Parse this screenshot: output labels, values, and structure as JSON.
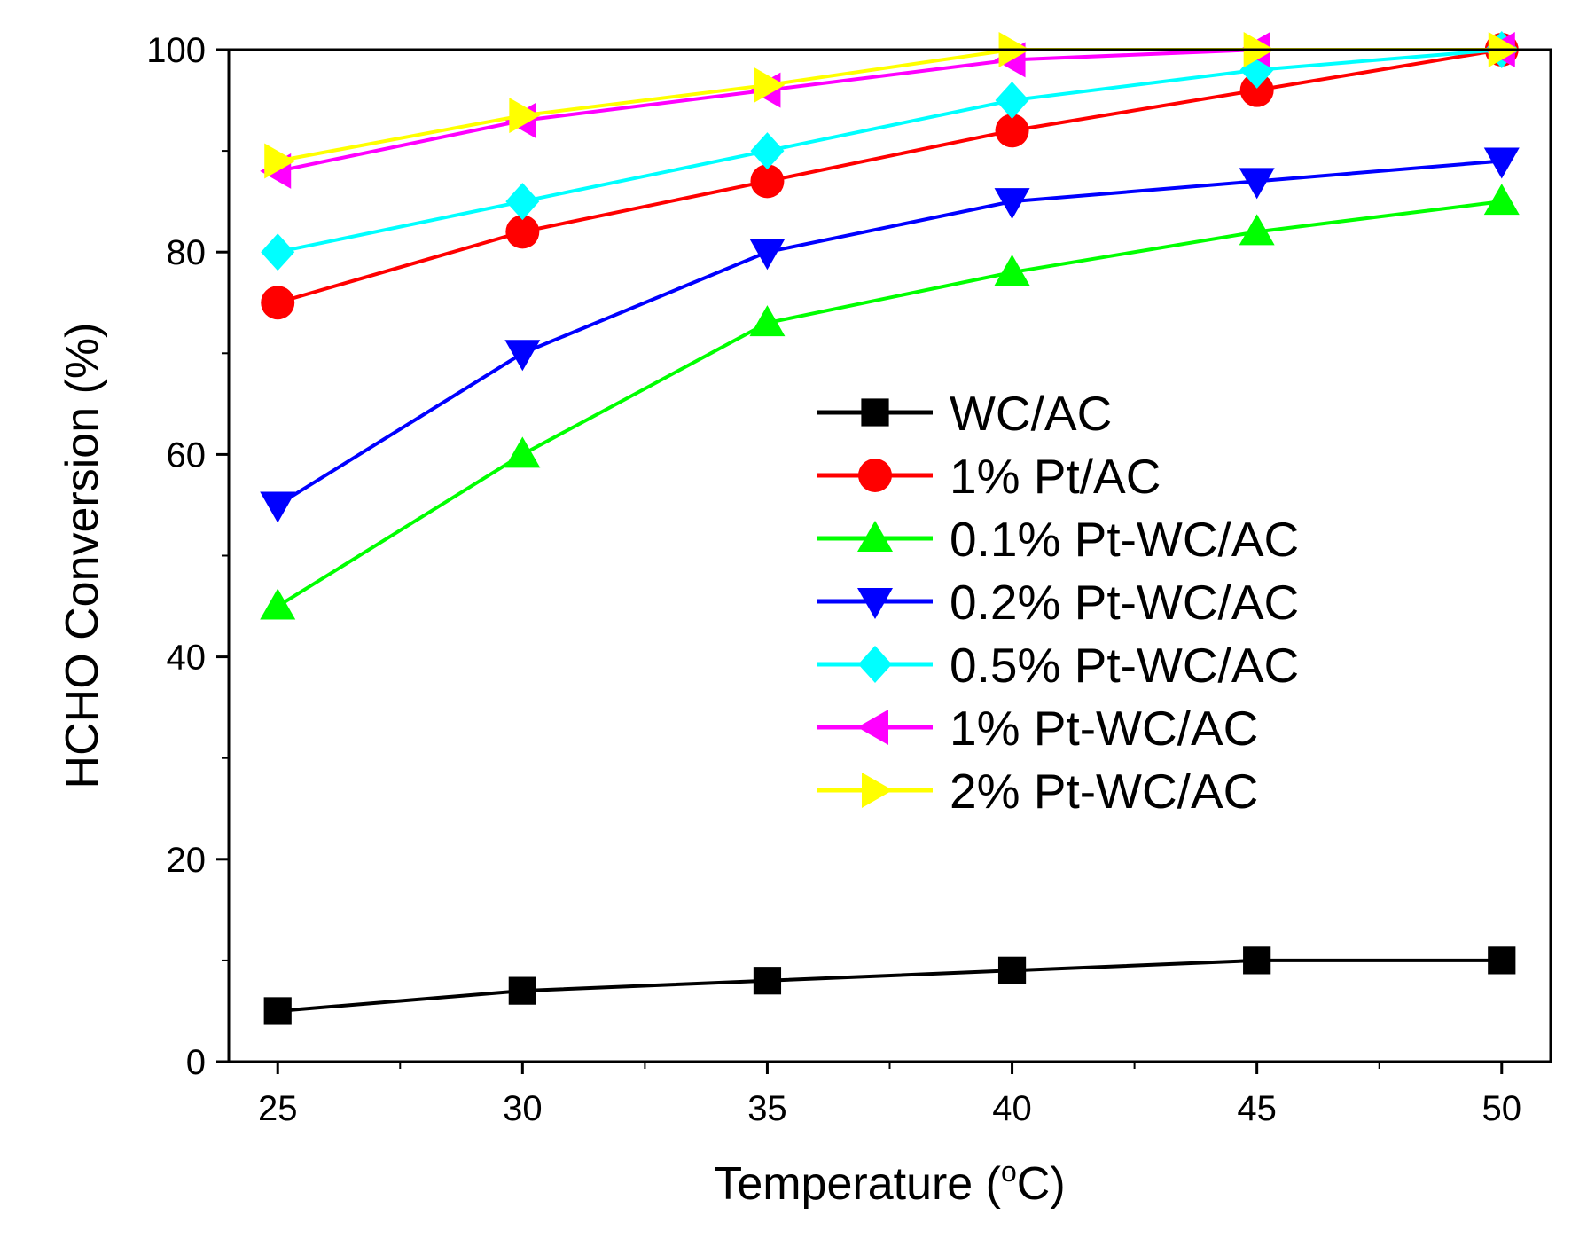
{
  "chart_data": {
    "type": "line",
    "title": "",
    "xlabel": "Temperature (",
    "xlabel_super": "o",
    "xlabel_unit": "C)",
    "ylabel": "HCHO Conversion (%)",
    "x": [
      25,
      30,
      35,
      40,
      45,
      50
    ],
    "xlim": [
      24,
      51
    ],
    "ylim": [
      0,
      100
    ],
    "xticks": [
      "25",
      "30",
      "35",
      "40",
      "45",
      "50"
    ],
    "yticks": [
      "0",
      "20",
      "40",
      "60",
      "80",
      "100"
    ],
    "grid": false,
    "legend_position": "center-right",
    "series": [
      {
        "name": "WC/AC",
        "color": "#000000",
        "marker": "square",
        "values": [
          5,
          7,
          8,
          9,
          10,
          10
        ]
      },
      {
        "name": "1% Pt/AC",
        "color": "#ff0000",
        "marker": "circle",
        "values": [
          75,
          82,
          87,
          92,
          96,
          100
        ]
      },
      {
        "name": "0.1% Pt-WC/AC",
        "color": "#00ff00",
        "marker": "triangle-up",
        "values": [
          45,
          60,
          73,
          78,
          82,
          85
        ]
      },
      {
        "name": "0.2% Pt-WC/AC",
        "color": "#0000ff",
        "marker": "triangle-down",
        "values": [
          55,
          70,
          80,
          85,
          87,
          89
        ]
      },
      {
        "name": "0.5% Pt-WC/AC",
        "color": "#00ffff",
        "marker": "diamond",
        "values": [
          80,
          85,
          90,
          95,
          98,
          100
        ]
      },
      {
        "name": "1% Pt-WC/AC",
        "color": "#ff00ff",
        "marker": "triangle-left",
        "values": [
          88,
          93,
          96,
          99,
          100,
          100
        ]
      },
      {
        "name": "2% Pt-WC/AC",
        "color": "#ffff00",
        "marker": "triangle-right",
        "values": [
          89,
          93.5,
          96.5,
          100,
          100,
          100
        ]
      }
    ]
  }
}
